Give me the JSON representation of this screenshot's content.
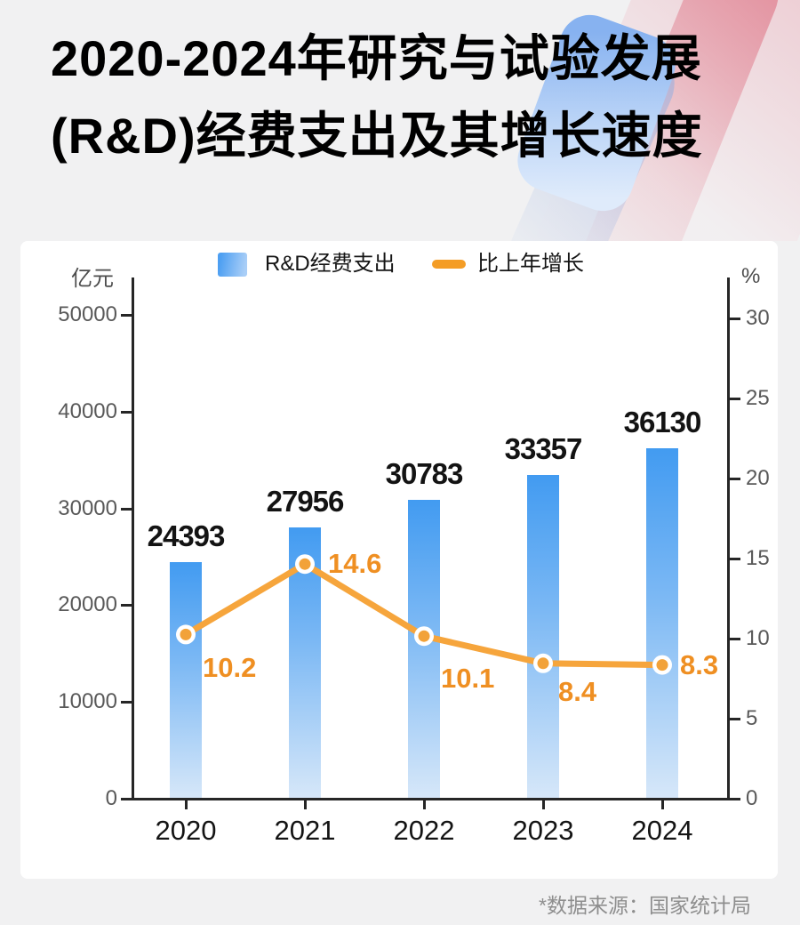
{
  "header": {
    "title_line1": "2020-2024年研究与试验发展",
    "title_line2": "(R&D)经费支出及其增长速度"
  },
  "legend": {
    "bar_label": "R&D经费支出",
    "line_label": "比上年增长"
  },
  "axes": {
    "left": {
      "unit": "亿元",
      "ticks": [
        0,
        10000,
        20000,
        30000,
        40000,
        50000
      ],
      "max": 50000
    },
    "right": {
      "unit": "%",
      "ticks": [
        0,
        5,
        10,
        15,
        20,
        25,
        30
      ],
      "max": 30
    }
  },
  "chart_data": {
    "type": "combo",
    "title": "2020-2024年研究与试验发展(R&D)经费支出及其增长速度",
    "categories": [
      "2020",
      "2021",
      "2022",
      "2023",
      "2024"
    ],
    "series": [
      {
        "name": "R&D经费支出",
        "type": "bar",
        "axis": "left",
        "unit": "亿元",
        "values": [
          24393,
          27956,
          30783,
          33357,
          36130
        ]
      },
      {
        "name": "比上年增长",
        "type": "line",
        "axis": "right",
        "unit": "%",
        "values": [
          10.2,
          14.6,
          10.1,
          8.4,
          8.3
        ]
      }
    ],
    "left_axis": {
      "label": "亿元",
      "range": [
        0,
        50000
      ],
      "tick_step": 10000
    },
    "right_axis": {
      "label": "%",
      "range": [
        0,
        30
      ],
      "tick_step": 5
    },
    "legend_position": "top",
    "grid": false
  },
  "footer": {
    "source_note": "*数据来源：国家统计局"
  },
  "colors": {
    "background": "#F1F1F2",
    "card": "#FFFFFF",
    "bar_top": "#429BF1",
    "bar_mid": "#7BB8F4",
    "bar_bottom": "#D6E7F9",
    "line": "#F6A53C",
    "dot_fill": "#F2A239",
    "dot_ring": "#FFFFFF",
    "pct_label": "#EF8F22",
    "axis": "#262626",
    "tick_text": "#595959",
    "value_text": "#131313",
    "source_text": "#8E8E8E"
  }
}
